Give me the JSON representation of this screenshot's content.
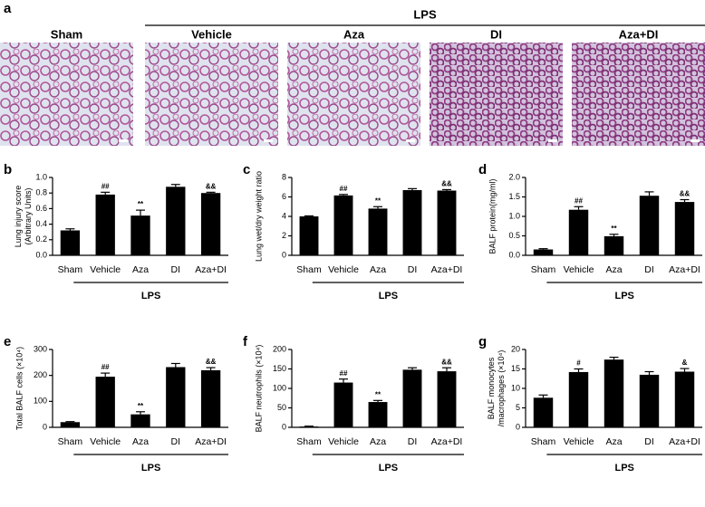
{
  "panel_a": {
    "label": "a",
    "group": "LPS",
    "images": [
      "Sham",
      "Vehicle",
      "Aza",
      "DI",
      "Aza+DI"
    ]
  },
  "chart_data": [
    {
      "type": "bar",
      "label": "b",
      "ylabel": [
        "Lung injury score",
        "(Arbitrary Units)"
      ],
      "group": "LPS",
      "categories": [
        "Sham",
        "Vehicle",
        "Aza",
        "DI",
        "Aza+DI"
      ],
      "values": [
        0.32,
        0.78,
        0.51,
        0.88,
        0.8
      ],
      "errors": [
        0.02,
        0.03,
        0.07,
        0.03,
        0.01
      ],
      "annotations": [
        null,
        "##",
        "**",
        null,
        "&&"
      ],
      "color": "#000000",
      "ylim": [
        0,
        1
      ],
      "yticks": [
        {
          "value": 0,
          "label": "0.0"
        },
        0.2,
        0.4,
        0.6,
        0.8,
        {
          "value": 1,
          "label": "1.0"
        }
      ]
    },
    {
      "type": "bar",
      "label": "c",
      "ylabel": [
        "Lung wet/dry weight ratio"
      ],
      "group": "LPS",
      "categories": [
        "Sham",
        "Vehicle",
        "Aza",
        "DI",
        "Aza+DI"
      ],
      "values": [
        4.0,
        6.15,
        4.8,
        6.7,
        6.65
      ],
      "errors": [
        0.05,
        0.1,
        0.2,
        0.15,
        0.1
      ],
      "annotations": [
        null,
        "##",
        "**",
        null,
        "&&"
      ],
      "color": "#000000",
      "ylim": [
        0,
        8
      ],
      "yticks": [
        0,
        2,
        4,
        6,
        8
      ]
    },
    {
      "type": "bar",
      "label": "d",
      "ylabel": [
        "BALF protein(mg/ml)"
      ],
      "group": "LPS",
      "categories": [
        "Sham",
        "Vehicle",
        "Aza",
        "DI",
        "Aza+DI"
      ],
      "values": [
        0.15,
        1.17,
        0.49,
        1.53,
        1.37
      ],
      "errors": [
        0.02,
        0.08,
        0.05,
        0.1,
        0.06
      ],
      "annotations": [
        null,
        "##",
        "**",
        null,
        "&&"
      ],
      "color": "#000000",
      "ylim": [
        0,
        2
      ],
      "yticks": [
        {
          "value": 0,
          "label": "0.0"
        },
        0.5,
        {
          "value": 1,
          "label": "1.0"
        },
        1.5,
        {
          "value": 2,
          "label": "2.0"
        }
      ]
    },
    {
      "type": "bar",
      "label": "e",
      "ylabel": [
        "Total BALF cells (×10⁴)"
      ],
      "group": "LPS",
      "categories": [
        "Sham",
        "Vehicle",
        "Aza",
        "DI",
        "Aza+DI"
      ],
      "values": [
        20,
        195,
        50,
        232,
        220
      ],
      "errors": [
        2,
        14,
        10,
        14,
        10
      ],
      "annotations": [
        null,
        "##",
        "**",
        null,
        "&&"
      ],
      "color": "#000000",
      "ylim": [
        0,
        300
      ],
      "yticks": [
        0,
        100,
        200,
        300
      ]
    },
    {
      "type": "bar",
      "label": "f",
      "ylabel": [
        "BALF neutrophils (×10⁴)"
      ],
      "group": "LPS",
      "categories": [
        "Sham",
        "Vehicle",
        "Aza",
        "DI",
        "Aza+DI"
      ],
      "values": [
        2,
        115,
        65,
        148,
        144
      ],
      "errors": [
        1,
        9,
        4,
        5,
        9
      ],
      "annotations": [
        null,
        "##",
        "**",
        null,
        "&&"
      ],
      "color": "#000000",
      "ylim": [
        0,
        200
      ],
      "yticks": [
        0,
        50,
        100,
        150,
        200
      ]
    },
    {
      "type": "bar",
      "label": "g",
      "ylabel": [
        "BALF monocytes",
        "/macrophages (×10⁴)"
      ],
      "group": "LPS",
      "categories": [
        "Sham",
        "Vehicle",
        "Aza",
        "DI",
        "Aza+DI"
      ],
      "values": [
        7.6,
        14.2,
        17.4,
        13.5,
        14.3
      ],
      "errors": [
        0.7,
        0.8,
        0.6,
        0.8,
        0.8
      ],
      "annotations": [
        null,
        "#",
        null,
        null,
        "&"
      ],
      "color": "#000000",
      "ylim": [
        0,
        20
      ],
      "yticks": [
        0,
        5,
        10,
        15,
        20
      ]
    }
  ]
}
